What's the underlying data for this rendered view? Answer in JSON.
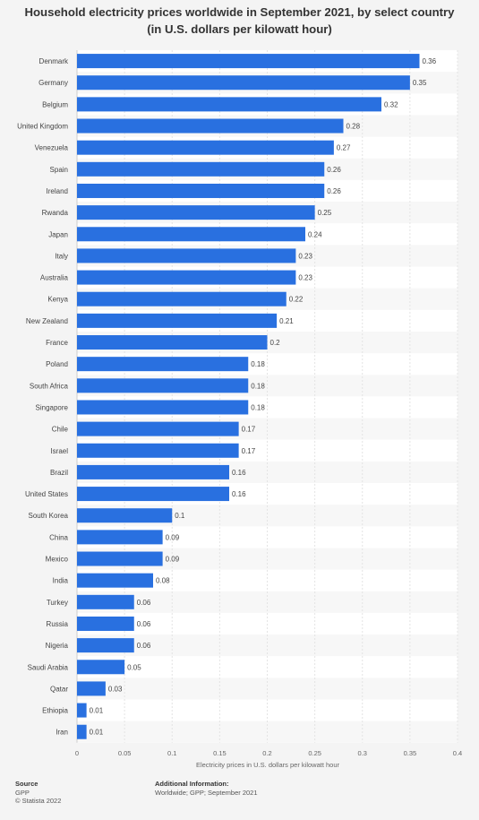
{
  "chart_data": {
    "type": "bar",
    "orientation": "horizontal",
    "title": "Household electricity prices worldwide in September 2021, by select country (in U.S. dollars per kilowatt hour)",
    "xlabel": "Electricity prices in U.S. dollars per kilowatt hour",
    "ylabel": "",
    "xlim": [
      0,
      0.4
    ],
    "ticks": [
      "0",
      "0.05",
      "0.1",
      "0.15",
      "0.2",
      "0.25",
      "0.3",
      "0.35",
      "0.4"
    ],
    "grid": true,
    "bar_color": "#2970e0",
    "categories": [
      "Denmark",
      "Germany",
      "Belgium",
      "United Kingdom",
      "Venezuela",
      "Spain",
      "Ireland",
      "Rwanda",
      "Japan",
      "Italy",
      "Australia",
      "Kenya",
      "New Zealand",
      "France",
      "Poland",
      "South Africa",
      "Singapore",
      "Chile",
      "Israel",
      "Brazil",
      "United States",
      "South Korea",
      "China",
      "Mexico",
      "India",
      "Turkey",
      "Russia",
      "Nigeria",
      "Saudi Arabia",
      "Qatar",
      "Ethiopia",
      "Iran"
    ],
    "values": [
      0.36,
      0.35,
      0.32,
      0.28,
      0.27,
      0.26,
      0.26,
      0.25,
      0.24,
      0.23,
      0.23,
      0.22,
      0.21,
      0.2,
      0.18,
      0.18,
      0.18,
      0.17,
      0.17,
      0.16,
      0.16,
      0.1,
      0.09,
      0.09,
      0.08,
      0.06,
      0.06,
      0.06,
      0.05,
      0.03,
      0.01,
      0.01
    ],
    "value_labels": [
      "0.36",
      "0.35",
      "0.32",
      "0.28",
      "0.27",
      "0.26",
      "0.26",
      "0.25",
      "0.24",
      "0.23",
      "0.23",
      "0.22",
      "0.21",
      "0.2",
      "0.18",
      "0.18",
      "0.18",
      "0.17",
      "0.17",
      "0.16",
      "0.16",
      "0.1",
      "0.09",
      "0.09",
      "0.08",
      "0.06",
      "0.06",
      "0.06",
      "0.05",
      "0.03",
      "0.01",
      "0.01"
    ]
  },
  "footer": {
    "source_heading": "Source",
    "source_name": "GPP",
    "copyright": "© Statista 2022",
    "info_heading": "Additional Information:",
    "info_text": "Worldwide; GPP; September 2021"
  }
}
